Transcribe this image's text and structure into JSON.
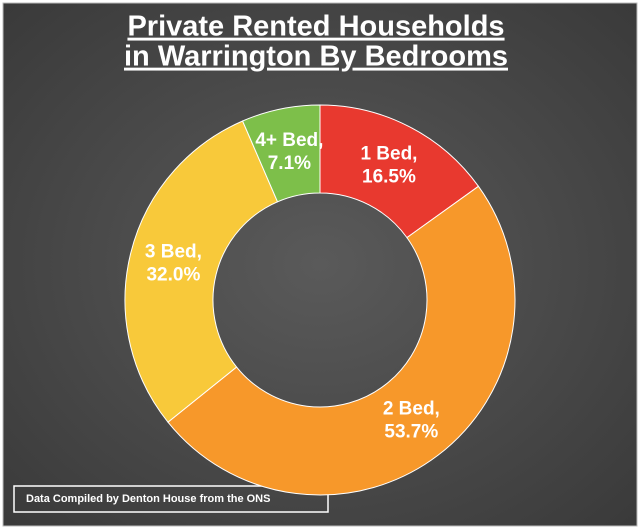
{
  "chart_data": {
    "type": "donut",
    "title": [
      "Private Rented Households",
      "in Warrington By Bedrooms"
    ],
    "categories": [
      "1 Bed,",
      "2 Bed,",
      "3 Bed,",
      "4+ Bed,"
    ],
    "values": [
      16.5,
      53.7,
      32.0,
      7.1
    ],
    "value_labels": [
      "16.5%",
      "53.7%",
      "32.0%",
      "7.1%"
    ],
    "colors": [
      "#e8392f",
      "#f7982a",
      "#f8c93a",
      "#7dbf4a"
    ],
    "note": "Data Compiled by Denton House from the ONS"
  }
}
